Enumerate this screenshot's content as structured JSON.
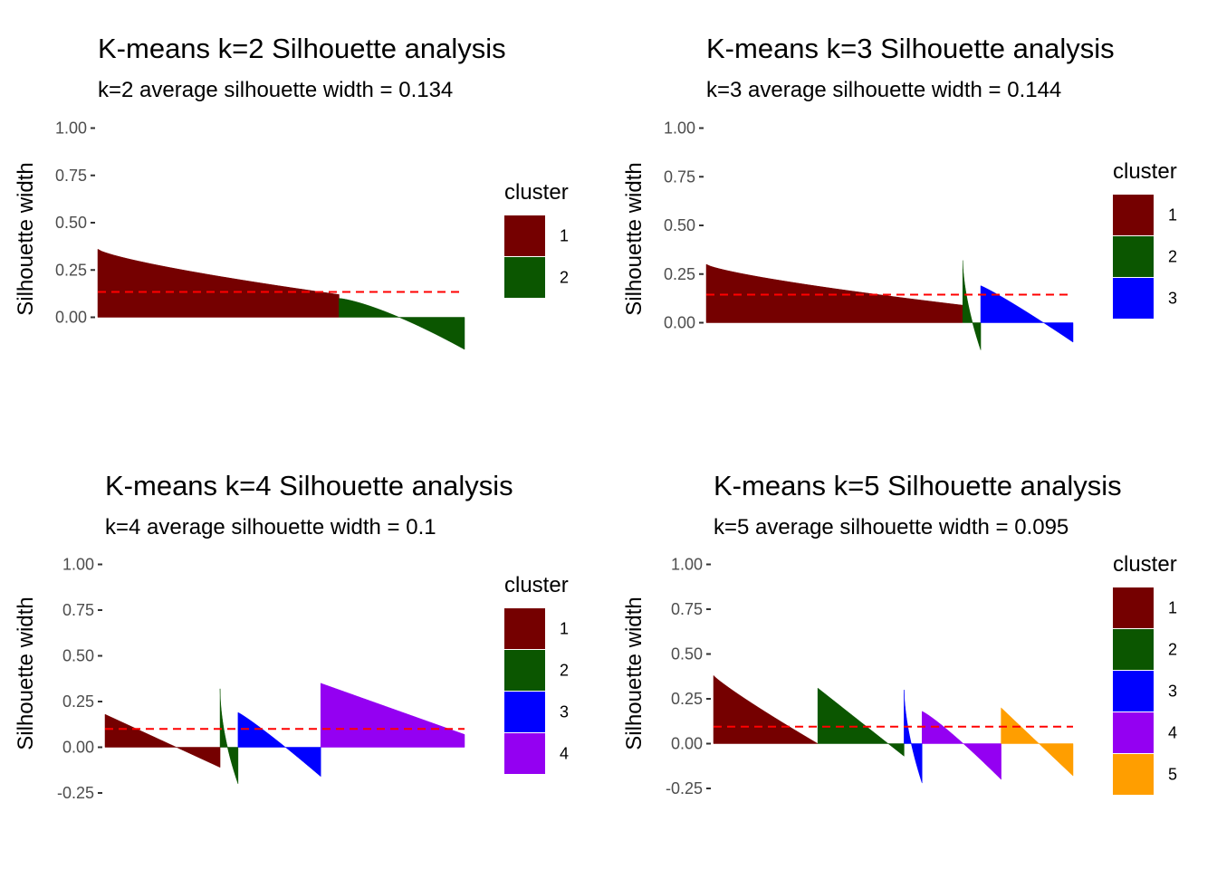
{
  "chart_data": [
    {
      "type": "area",
      "title": "K-means k=2 Silhouette analysis",
      "subtitle": "k=2 average silhouette width =  0.134",
      "ylabel": "Silhouette width",
      "xlabel": "",
      "ylim": [
        -0.17,
        1.0
      ],
      "yticks": [
        "0.00",
        "0.25",
        "0.50",
        "0.75",
        "1.00"
      ],
      "ytick_values": [
        0,
        0.25,
        0.5,
        0.75,
        1.0
      ],
      "average": 0.134,
      "legend_title": "cluster",
      "legend_position": "right",
      "grid": false,
      "clusters": [
        {
          "name": "1",
          "color": "#750000",
          "size": 100,
          "start": 0.36,
          "end": 0.12,
          "curve": 0.75
        },
        {
          "name": "2",
          "color": "#0b5600",
          "size": 52,
          "start": 0.1,
          "end": -0.17,
          "curve": 1.35
        }
      ]
    },
    {
      "type": "area",
      "title": "K-means k=3 Silhouette analysis",
      "subtitle": "k=3 average silhouette width =  0.144",
      "ylabel": "Silhouette width",
      "xlabel": "",
      "ylim": [
        -0.14,
        1.0
      ],
      "yticks": [
        "0.00",
        "0.25",
        "0.50",
        "0.75",
        "1.00"
      ],
      "ytick_values": [
        0,
        0.25,
        0.5,
        0.75,
        1.0
      ],
      "average": 0.144,
      "legend_title": "cluster",
      "legend_position": "right",
      "grid": false,
      "clusters": [
        {
          "name": "1",
          "color": "#750000",
          "size": 100,
          "start": 0.3,
          "end": 0.09,
          "curve": 0.75
        },
        {
          "name": "2",
          "color": "#0b5600",
          "size": 7,
          "start": 0.32,
          "end": -0.14,
          "curve": 0.6
        },
        {
          "name": "3",
          "color": "#0000ff",
          "size": 36,
          "start": 0.19,
          "end": -0.1,
          "curve": 1.1
        }
      ]
    },
    {
      "type": "area",
      "title": "K-means k=4 Silhouette analysis",
      "subtitle": "k=4 average silhouette width =  0.1",
      "ylabel": "Silhouette width",
      "xlabel": "",
      "ylim": [
        -0.25,
        1.0
      ],
      "yticks": [
        "-0.25",
        "0.00",
        "0.25",
        "0.50",
        "0.75",
        "1.00"
      ],
      "ytick_values": [
        -0.25,
        0,
        0.25,
        0.5,
        0.75,
        1.0
      ],
      "average": 0.1,
      "legend_title": "cluster",
      "legend_position": "right",
      "grid": false,
      "clusters": [
        {
          "name": "1",
          "color": "#750000",
          "size": 32,
          "start": 0.18,
          "end": -0.11,
          "curve": 1.0
        },
        {
          "name": "2",
          "color": "#0b5600",
          "size": 5,
          "start": 0.32,
          "end": -0.2,
          "curve": 0.55
        },
        {
          "name": "3",
          "color": "#0000ff",
          "size": 23,
          "start": 0.19,
          "end": -0.16,
          "curve": 1.1
        },
        {
          "name": "4",
          "color": "#9400f2",
          "size": 40,
          "start": 0.35,
          "end": 0.07,
          "curve": 1.0
        }
      ]
    },
    {
      "type": "area",
      "title": "K-means k=5 Silhouette analysis",
      "subtitle": "k=5 average silhouette width =  0.095",
      "ylabel": "Silhouette width",
      "xlabel": "",
      "ylim": [
        -0.25,
        1.0
      ],
      "yticks": [
        "-0.25",
        "0.00",
        "0.25",
        "0.50",
        "0.75",
        "1.00"
      ],
      "ytick_values": [
        -0.25,
        0,
        0.25,
        0.5,
        0.75,
        1.0
      ],
      "average": 0.095,
      "legend_title": "cluster",
      "legend_position": "right",
      "grid": false,
      "clusters": [
        {
          "name": "1",
          "color": "#750000",
          "size": 29,
          "start": 0.38,
          "end": 0.0,
          "curve": 0.9
        },
        {
          "name": "2",
          "color": "#0b5600",
          "size": 24,
          "start": 0.31,
          "end": -0.07,
          "curve": 1.0
        },
        {
          "name": "3",
          "color": "#0000ff",
          "size": 5,
          "start": 0.3,
          "end": -0.22,
          "curve": 0.6
        },
        {
          "name": "4",
          "color": "#9400f2",
          "size": 22,
          "start": 0.18,
          "end": -0.2,
          "curve": 1.15
        },
        {
          "name": "5",
          "color": "#ff9e00",
          "size": 20,
          "start": 0.2,
          "end": -0.18,
          "curve": 1.0
        }
      ]
    }
  ]
}
